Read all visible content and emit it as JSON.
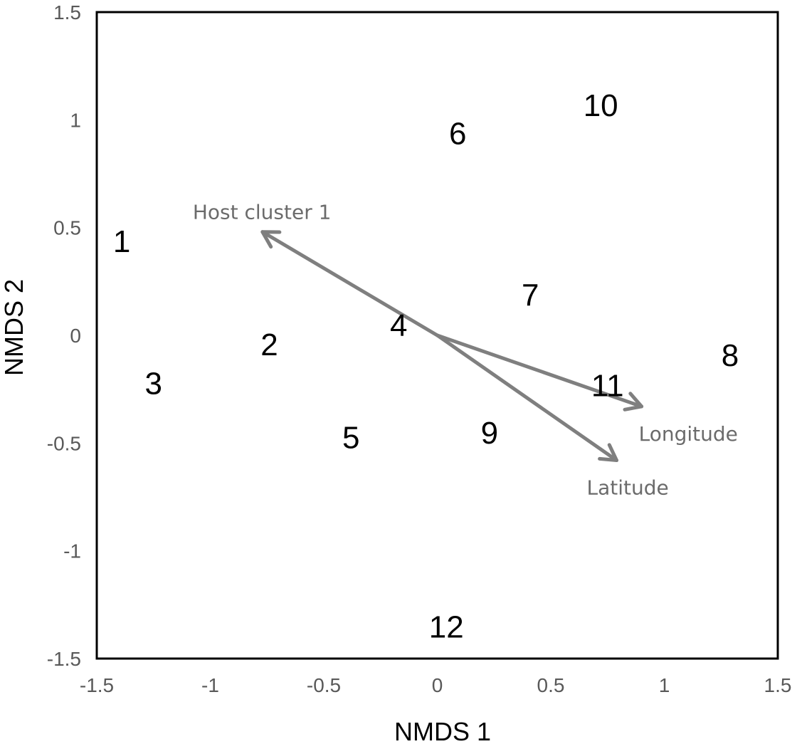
{
  "chart_data": {
    "type": "scatter",
    "title": "",
    "xlabel": "NMDS 1",
    "ylabel": "NMDS 2",
    "xlim": [
      -1.5,
      1.5
    ],
    "ylim": [
      -1.5,
      1.5
    ],
    "xticks": [
      -1.5,
      -1,
      -0.5,
      0,
      0.5,
      1,
      1.5
    ],
    "yticks": [
      -1.5,
      -1,
      -0.5,
      0,
      0.5,
      1,
      1.5
    ],
    "xtick_labels": [
      "-1.5",
      "-1",
      "-0.5",
      "0",
      "0.5",
      "1",
      "1.5"
    ],
    "ytick_labels": [
      "-1.5",
      "-1",
      "-0.5",
      "0",
      "0.5",
      "1",
      "1.5"
    ],
    "grid": false,
    "points": [
      {
        "label": "1",
        "x": -1.39,
        "y": 0.44
      },
      {
        "label": "2",
        "x": -0.74,
        "y": -0.04
      },
      {
        "label": "3",
        "x": -1.25,
        "y": -0.22
      },
      {
        "label": "4",
        "x": -0.17,
        "y": 0.05
      },
      {
        "label": "5",
        "x": -0.38,
        "y": -0.47
      },
      {
        "label": "6",
        "x": 0.09,
        "y": 0.94
      },
      {
        "label": "7",
        "x": 0.41,
        "y": 0.19
      },
      {
        "label": "8",
        "x": 1.29,
        "y": -0.09
      },
      {
        "label": "9",
        "x": 0.23,
        "y": -0.45
      },
      {
        "label": "10",
        "x": 0.72,
        "y": 1.07
      },
      {
        "label": "11",
        "x": 0.75,
        "y": -0.23
      },
      {
        "label": "12",
        "x": 0.04,
        "y": -1.35
      }
    ],
    "vectors": [
      {
        "name": "Host cluster 1",
        "x": -0.77,
        "y": 0.48
      },
      {
        "name": "Longitude",
        "x": 0.9,
        "y": -0.33
      },
      {
        "name": "Latitude",
        "x": 0.79,
        "y": -0.58
      }
    ],
    "colors": {
      "vector": "#7f7f7f",
      "vector_label": "#6b6b6b",
      "tick": "#595959",
      "frame": "#000000"
    }
  }
}
